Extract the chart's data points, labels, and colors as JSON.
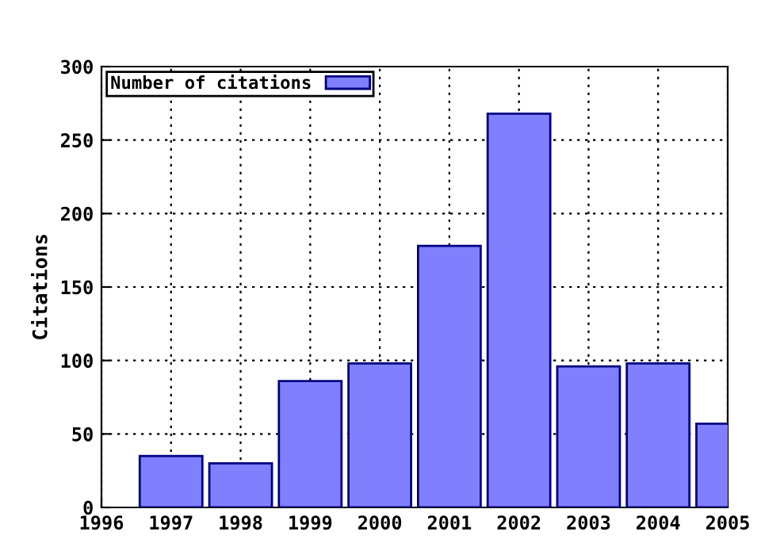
{
  "chart_data": {
    "type": "bar",
    "ylabel": "Citations",
    "x": [
      1997,
      1998,
      1999,
      2000,
      2001,
      2002,
      2003,
      2004,
      2005
    ],
    "series": [
      {
        "name": "Number of citations",
        "color": "#8080ff",
        "values": [
          35,
          30,
          86,
          98,
          178,
          268,
          96,
          98,
          57
        ]
      }
    ],
    "xlim": [
      1996,
      2005
    ],
    "xticks": [
      1996,
      1997,
      1998,
      1999,
      2000,
      2001,
      2002,
      2003,
      2004,
      2005
    ],
    "ylim": [
      0,
      300
    ],
    "yticks": [
      0,
      50,
      100,
      150,
      200,
      250,
      300
    ],
    "grid": true,
    "legend": "top left"
  }
}
